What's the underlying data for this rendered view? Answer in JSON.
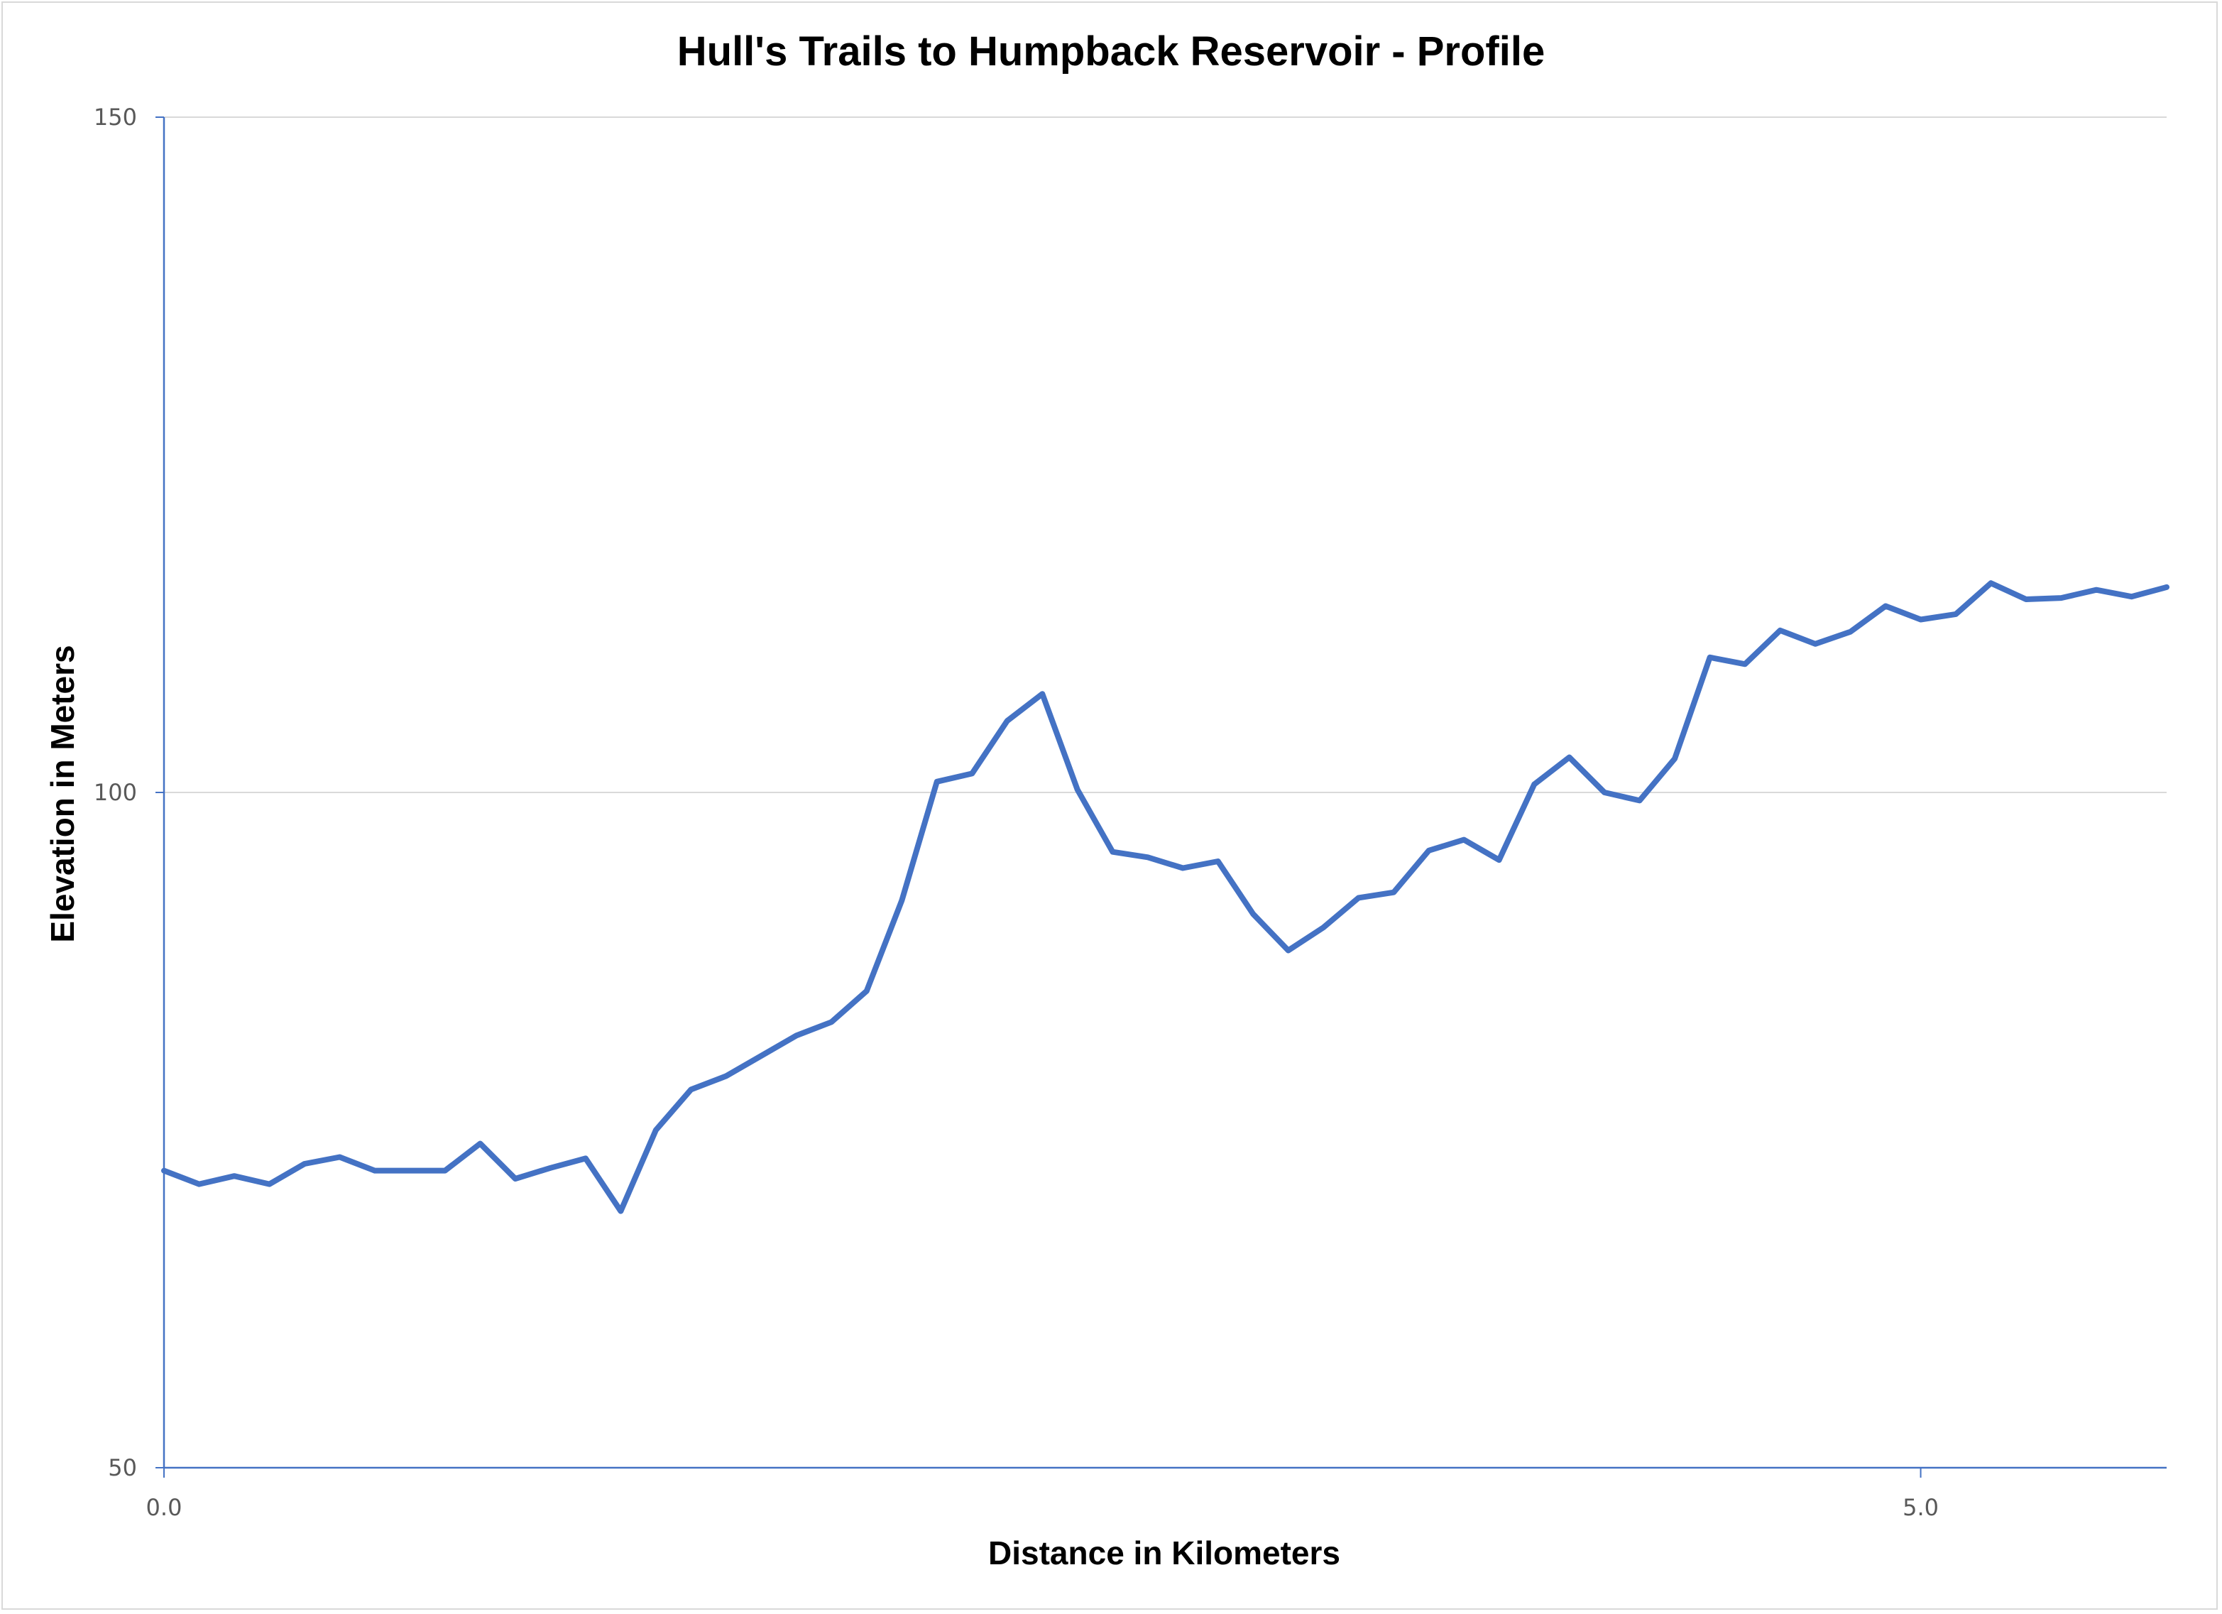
{
  "chart_data": {
    "type": "line",
    "title": "Hull's Trails to Humpback Reservoir - Profile",
    "xlabel": "Distance in Kilometers",
    "ylabel": "Elevation in Meters",
    "xlim": [
      0,
      5.7
    ],
    "ylim": [
      50,
      150
    ],
    "xticks": [
      0,
      5
    ],
    "xtick_labels": [
      "0.0",
      "5.0"
    ],
    "yticks": [
      50,
      100,
      150
    ],
    "ytick_labels": [
      "50",
      "100",
      "150"
    ],
    "grid": "horizontal",
    "color": "#4472C4",
    "x": [
      0.0,
      0.1,
      0.2,
      0.3,
      0.4,
      0.5,
      0.6,
      0.7,
      0.8,
      0.9,
      1.0,
      1.1,
      1.2,
      1.3,
      1.4,
      1.5,
      1.6,
      1.7,
      1.8,
      1.9,
      2.0,
      2.1,
      2.2,
      2.3,
      2.4,
      2.5,
      2.6,
      2.7,
      2.8,
      2.9,
      3.0,
      3.1,
      3.2,
      3.3,
      3.4,
      3.5,
      3.6,
      3.7,
      3.8,
      3.9,
      4.0,
      4.1,
      4.2,
      4.3,
      4.4,
      4.5,
      4.6,
      4.7,
      4.8,
      4.9,
      5.0,
      5.1,
      5.2,
      5.3,
      5.4,
      5.5,
      5.6,
      5.7
    ],
    "y": [
      72.0,
      71.0,
      71.6,
      71.0,
      72.5,
      73.0,
      72.0,
      72.0,
      72.0,
      74.0,
      71.4,
      72.2,
      72.9,
      69.0,
      75.0,
      78.0,
      79.0,
      80.5,
      82.0,
      83.0,
      85.3,
      92.0,
      100.8,
      101.4,
      105.3,
      107.3,
      100.2,
      95.6,
      95.2,
      94.4,
      94.9,
      91.0,
      88.3,
      90.0,
      92.2,
      92.6,
      95.7,
      96.5,
      95.0,
      100.6,
      102.6,
      100.0,
      99.4,
      102.5,
      110.0,
      109.5,
      112.0,
      111.0,
      111.9,
      113.8,
      112.8,
      113.2,
      115.5,
      114.3,
      114.4,
      115.0,
      114.5,
      115.2
    ]
  }
}
